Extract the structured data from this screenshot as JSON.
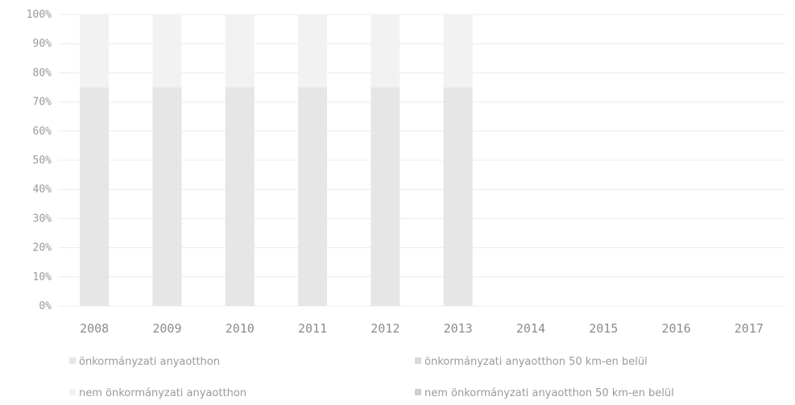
{
  "chart_data": {
    "type": "bar",
    "stacked": true,
    "percent": true,
    "categories": [
      "2008",
      "2009",
      "2010",
      "2011",
      "2012",
      "2013",
      "2014",
      "2015",
      "2016",
      "2017"
    ],
    "ylim": [
      0,
      100
    ],
    "y_ticks": [
      "0%",
      "10%",
      "20%",
      "30%",
      "40%",
      "50%",
      "60%",
      "70%",
      "80%",
      "90%",
      "100%"
    ],
    "grid": true,
    "legend_position": "bottom",
    "series": [
      {
        "name": "önkormányzati anyaotthon",
        "color": "#e6e6e6",
        "values": [
          75,
          75,
          75,
          75,
          75,
          75,
          0,
          0,
          0,
          0
        ]
      },
      {
        "name": "önkormányzati anyaotthon 50 km-en belül",
        "color": "#d9d9d9",
        "values": [
          0,
          0,
          0,
          0,
          0,
          0,
          0,
          0,
          0,
          0
        ]
      },
      {
        "name": "nem önkormányzati anyaotthon",
        "color": "#f2f2f2",
        "values": [
          25,
          25,
          25,
          25,
          25,
          25,
          0,
          0,
          0,
          0
        ]
      },
      {
        "name": "nem önkormányzati anyaotthon 50 km-en belül",
        "color": "#cfcfcf",
        "values": [
          0,
          0,
          0,
          0,
          0,
          0,
          0,
          0,
          0,
          0
        ]
      }
    ]
  }
}
